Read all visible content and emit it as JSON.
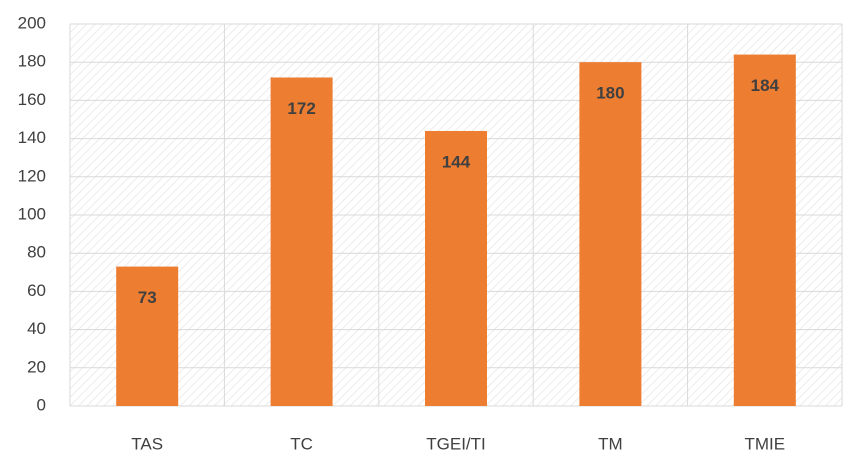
{
  "chart_data": {
    "type": "bar",
    "categories": [
      "TAS",
      "TC",
      "TGEI/TI",
      "TM",
      "TMIE"
    ],
    "values": [
      73,
      172,
      144,
      180,
      184
    ],
    "color": "#ed7d31",
    "ylim": [
      0,
      200
    ],
    "yticks": [
      0,
      20,
      40,
      60,
      80,
      100,
      120,
      140,
      160,
      180,
      200
    ],
    "grid": true
  }
}
